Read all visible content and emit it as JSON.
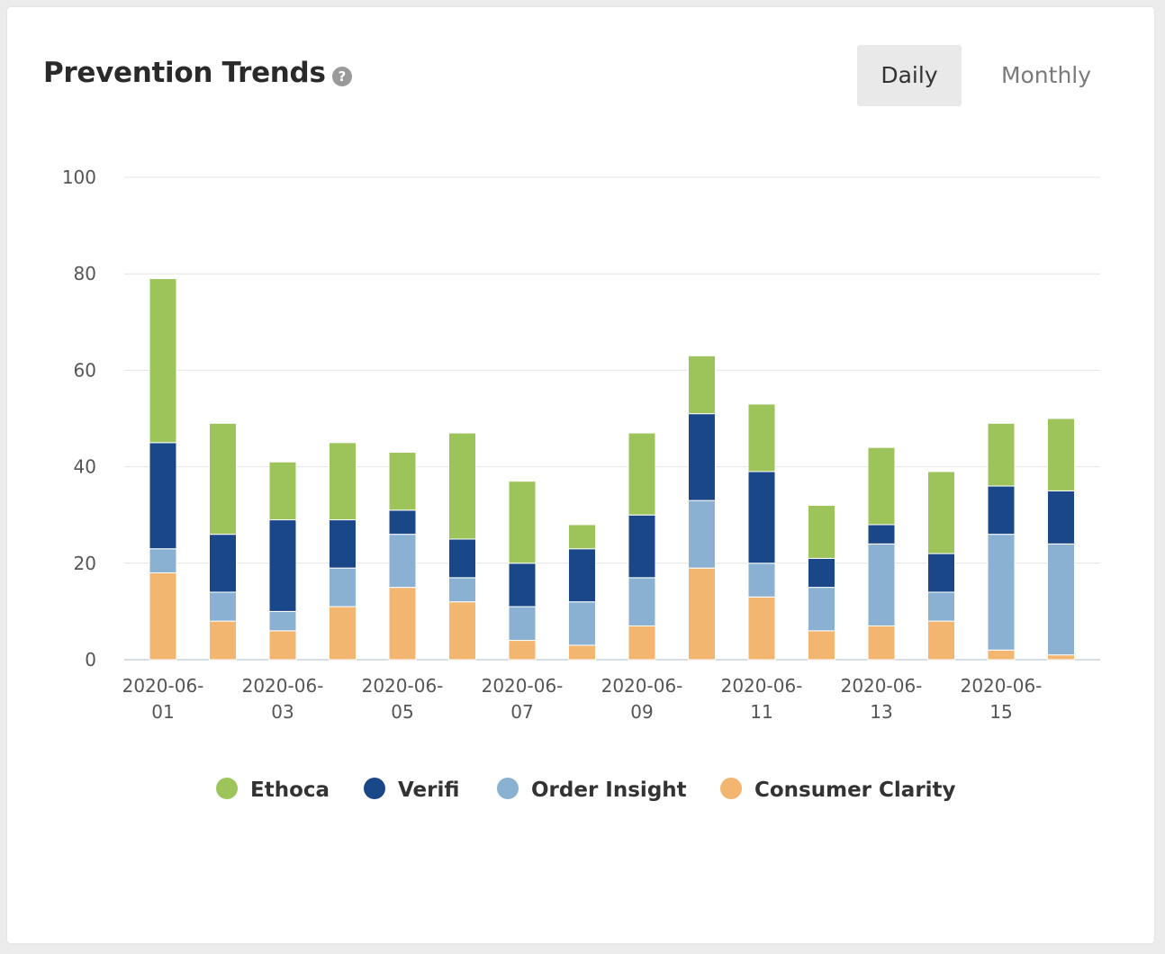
{
  "header": {
    "title": "Prevention Trends",
    "help_icon": "question-circle-icon",
    "help_glyph": "?"
  },
  "toggles": {
    "daily_label": "Daily",
    "monthly_label": "Monthly",
    "selected": "Daily"
  },
  "chart_data": {
    "type": "bar",
    "stacked": true,
    "categories": [
      "2020-06-01",
      "2020-06-02",
      "2020-06-03",
      "2020-06-04",
      "2020-06-05",
      "2020-06-06",
      "2020-06-07",
      "2020-06-08",
      "2020-06-09",
      "2020-06-10",
      "2020-06-11",
      "2020-06-12",
      "2020-06-13",
      "2020-06-14",
      "2020-06-15",
      "2020-06-16"
    ],
    "tick_labels": [
      {
        "line1": "2020-06-",
        "line2": "01"
      },
      {
        "line1": "2020-06-",
        "line2": "03"
      },
      {
        "line1": "2020-06-",
        "line2": "05"
      },
      {
        "line1": "2020-06-",
        "line2": "07"
      },
      {
        "line1": "2020-06-",
        "line2": "09"
      },
      {
        "line1": "2020-06-",
        "line2": "11"
      },
      {
        "line1": "2020-06-",
        "line2": "13"
      },
      {
        "line1": "2020-06-",
        "line2": "15"
      }
    ],
    "series": [
      {
        "name": "Consumer Clarity",
        "color": "#f2b671",
        "values": [
          18,
          8,
          6,
          11,
          15,
          12,
          4,
          3,
          7,
          19,
          13,
          6,
          7,
          8,
          2,
          1
        ]
      },
      {
        "name": "Order Insight",
        "color": "#8ab1d1",
        "values": [
          5,
          6,
          4,
          8,
          11,
          5,
          7,
          9,
          10,
          14,
          7,
          9,
          17,
          6,
          24,
          23
        ]
      },
      {
        "name": "Verifi",
        "color": "#1a4788",
        "values": [
          22,
          12,
          19,
          10,
          5,
          8,
          9,
          11,
          13,
          18,
          19,
          6,
          4,
          8,
          10,
          11
        ]
      },
      {
        "name": "Ethoca",
        "color": "#9dc45b",
        "values": [
          34,
          23,
          12,
          16,
          12,
          22,
          17,
          5,
          17,
          12,
          14,
          11,
          16,
          17,
          13,
          15
        ]
      }
    ],
    "legend_order": [
      "Ethoca",
      "Verifi",
      "Order Insight",
      "Consumer Clarity"
    ],
    "y_ticks": [
      0,
      20,
      40,
      60,
      80,
      100
    ],
    "ylim": [
      0,
      100
    ],
    "grid": true,
    "legend_position": "bottom"
  }
}
